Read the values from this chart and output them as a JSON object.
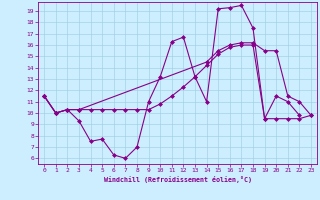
{
  "xlabel": "Windchill (Refroidissement éolien,°C)",
  "bg_color": "#cceeff",
  "line_color": "#880088",
  "xlim": [
    -0.5,
    23.5
  ],
  "ylim": [
    5.5,
    19.8
  ],
  "yticks": [
    6,
    7,
    8,
    9,
    10,
    11,
    12,
    13,
    14,
    15,
    16,
    17,
    18,
    19
  ],
  "xticks": [
    0,
    1,
    2,
    3,
    4,
    5,
    6,
    7,
    8,
    9,
    10,
    11,
    12,
    13,
    14,
    15,
    16,
    17,
    18,
    19,
    20,
    21,
    22,
    23
  ],
  "line1_x": [
    0,
    1,
    2,
    3,
    4,
    5,
    6,
    7,
    8,
    9,
    10,
    11,
    12,
    13,
    14,
    15,
    16,
    17,
    18,
    19,
    20,
    21,
    22
  ],
  "line1_y": [
    11.5,
    10.0,
    10.3,
    9.3,
    7.5,
    7.7,
    6.3,
    6.0,
    7.0,
    11.0,
    13.2,
    16.3,
    16.7,
    13.2,
    11.0,
    19.2,
    19.3,
    19.5,
    17.5,
    9.5,
    11.5,
    11.0,
    9.8
  ],
  "line2_x": [
    0,
    1,
    2,
    3,
    4,
    5,
    6,
    7,
    8,
    9,
    10,
    11,
    12,
    13,
    14,
    15,
    16,
    17,
    18,
    19,
    20,
    21,
    22,
    23
  ],
  "line2_y": [
    11.5,
    10.0,
    10.3,
    10.3,
    10.3,
    10.3,
    10.3,
    10.3,
    10.3,
    10.3,
    10.8,
    11.5,
    12.3,
    13.2,
    14.2,
    15.2,
    15.8,
    16.0,
    16.0,
    9.5,
    9.5,
    9.5,
    9.5,
    9.8
  ],
  "line3_x": [
    0,
    1,
    2,
    3,
    14,
    15,
    16,
    17,
    18,
    19,
    20,
    21,
    22,
    23
  ],
  "line3_y": [
    11.5,
    10.0,
    10.3,
    10.3,
    14.5,
    15.5,
    16.0,
    16.2,
    16.2,
    15.5,
    15.5,
    11.5,
    11.0,
    9.8
  ]
}
